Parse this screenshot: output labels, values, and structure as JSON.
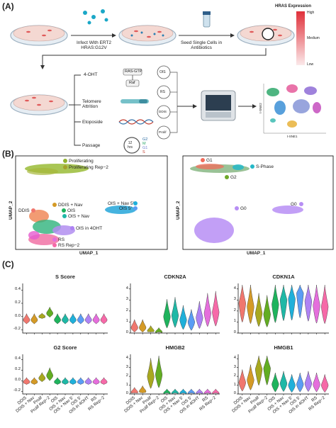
{
  "panel_letters": [
    "(A)",
    "(B)",
    "(C)"
  ],
  "panel_a": {
    "step1": "Infect With ERT2\nHRAS:G12V",
    "step2": "Seed Single Cells in\nAntibiotics",
    "legend_title": "HRAS Expression",
    "legend_high": "High",
    "legend_medium": "Medium",
    "legend_low": "Low",
    "treatments": [
      "4-OHT",
      "Telomere\nAttrition",
      "Etoposide",
      "Passage"
    ],
    "ras_gtp": "RAS-GTP",
    "raf": "Raf",
    "conditions": [
      "OIS",
      "RS",
      "DDIS",
      "Prolif"
    ],
    "clock": "12\nhrs",
    "cycle": [
      "G2",
      "M",
      "G1",
      "S"
    ],
    "tsne_x": "t-SNE1",
    "tsne_y": "t-SNE2"
  },
  "panel_b": {
    "umap_x": "UMAP_1",
    "umap_y": "UMAP_2",
    "left_labels": [
      "Proliferating",
      "Proliferating Rep−2",
      "DDIS + Nav",
      "DDIS",
      "OIS",
      "OIS + Nav",
      "OIS + Nav 5'",
      "OIS 5'",
      "OIS in 4OHT",
      "RS",
      "RS Rep−2"
    ],
    "right_labels": [
      "G1",
      "S-Phase",
      "G2",
      "G0",
      "G0"
    ]
  },
  "panel_c": {
    "plots": [
      {
        "title": "S Score",
        "yticks": [
          "0.4",
          "0.2",
          "0.0",
          "-0.2"
        ]
      },
      {
        "title": "CDKN2A",
        "yticks": [
          "4",
          "3",
          "2",
          "1",
          "0"
        ]
      },
      {
        "title": "CDKN1A",
        "yticks": [
          "4",
          "3",
          "2",
          "1",
          "0"
        ]
      },
      {
        "title": "G2 Score",
        "yticks": [
          "0.4",
          "0.2",
          "0.0",
          "-0.2"
        ]
      },
      {
        "title": "HMGB2",
        "yticks": [
          "4",
          "3",
          "2",
          "1",
          "0"
        ]
      },
      {
        "title": "HMGB1",
        "yticks": [
          "4",
          "3",
          "2",
          "1",
          "0"
        ]
      }
    ],
    "categories": [
      "DDIS",
      "DDIS + Nav",
      "Prolif",
      "Prolif Rep−2",
      "OIS",
      "OIS + Nav",
      "OIS + Nav 5'",
      "OIS 5'",
      "OIS in 4OHT",
      "RS",
      "RS Rep−2"
    ],
    "colors": [
      "#f0776e",
      "#d49a26",
      "#a8a81f",
      "#62ad22",
      "#1fb35d",
      "#1fb8a6",
      "#1fb0da",
      "#5a9df4",
      "#ae82f4",
      "#e56edc",
      "#f66aa8"
    ],
    "chart_data": [
      {
        "type": "violin",
        "title": "S Score",
        "categories": [
          "DDIS",
          "DDIS + Nav",
          "Prolif",
          "Prolif Rep−2",
          "OIS",
          "OIS + Nav",
          "OIS + Nav 5'",
          "OIS 5'",
          "OIS in 4OHT",
          "RS",
          "RS Rep−2"
        ],
        "medians": [
          -0.05,
          -0.05,
          0.0,
          0.05,
          -0.05,
          -0.05,
          -0.05,
          -0.05,
          -0.05,
          -0.05,
          -0.05
        ],
        "ylim": [
          -0.25,
          0.5
        ]
      },
      {
        "type": "violin",
        "title": "CDKN2A",
        "categories": [
          "DDIS",
          "DDIS + Nav",
          "Prolif",
          "Prolif Rep−2",
          "OIS",
          "OIS + Nav",
          "OIS + Nav 5'",
          "OIS 5'",
          "OIS in 4OHT",
          "RS",
          "RS Rep−2"
        ],
        "medians": [
          0.5,
          0.5,
          0.2,
          0.1,
          1.5,
          1.6,
          1.2,
          1.0,
          1.4,
          1.8,
          1.9
        ],
        "ylim": [
          0,
          4.5
        ]
      },
      {
        "type": "violin",
        "title": "CDKN1A",
        "categories": [
          "DDIS",
          "DDIS + Nav",
          "Prolif",
          "Prolif Rep−2",
          "OIS",
          "OIS + Nav",
          "OIS + Nav 5'",
          "OIS 5'",
          "OIS in 4OHT",
          "RS",
          "RS Rep−2"
        ],
        "medians": [
          2.7,
          2.4,
          1.8,
          1.7,
          2.6,
          3.0,
          3.1,
          3.6,
          2.9,
          2.5,
          2.4
        ],
        "ylim": [
          0,
          4.5
        ]
      },
      {
        "type": "violin",
        "title": "G2 Score",
        "categories": [
          "DDIS",
          "DDIS + Nav",
          "Prolif",
          "Prolif Rep−2",
          "OIS",
          "OIS + Nav",
          "OIS + Nav 5'",
          "OIS 5'",
          "OIS in 4OHT",
          "RS",
          "RS Rep−2"
        ],
        "medians": [
          -0.02,
          -0.02,
          0.05,
          0.1,
          -0.02,
          -0.02,
          -0.02,
          -0.02,
          -0.02,
          -0.02,
          -0.02
        ],
        "ylim": [
          -0.25,
          0.5
        ]
      },
      {
        "type": "violin",
        "title": "HMGB2",
        "categories": [
          "DDIS",
          "DDIS + Nav",
          "Prolif",
          "Prolif Rep−2",
          "OIS",
          "OIS + Nav",
          "OIS + Nav 5'",
          "OIS 5'",
          "OIS in 4OHT",
          "RS",
          "RS Rep−2"
        ],
        "medians": [
          0.2,
          0.3,
          2.0,
          2.2,
          0.1,
          0.1,
          0.1,
          0.1,
          0.1,
          0.1,
          0.1
        ],
        "ylim": [
          0,
          4.5
        ]
      },
      {
        "type": "violin",
        "title": "HMGB1",
        "categories": [
          "DDIS",
          "DDIS + Nav",
          "Prolif",
          "Prolif Rep−2",
          "OIS",
          "OIS + Nav",
          "OIS + Nav 5'",
          "OIS 5'",
          "OIS in 4OHT",
          "RS",
          "RS Rep−2"
        ],
        "medians": [
          1.3,
          1.6,
          2.8,
          2.9,
          1.1,
          1.2,
          1.0,
          1.1,
          1.2,
          1.1,
          1.0
        ],
        "ylim": [
          0,
          4.5
        ]
      }
    ]
  }
}
